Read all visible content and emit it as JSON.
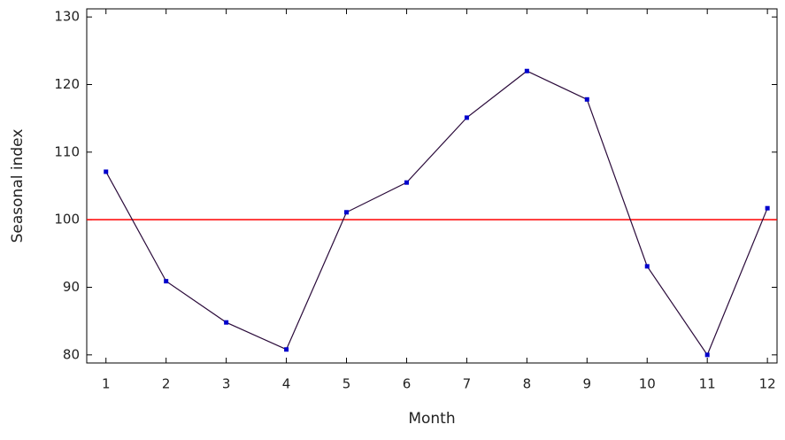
{
  "chart_data": {
    "type": "line",
    "x_label": "Month",
    "y_label": "Seasonal index",
    "x": [
      1,
      2,
      3,
      4,
      5,
      6,
      7,
      8,
      9,
      10,
      11,
      12
    ],
    "series": [
      {
        "color": "#2a0a3a",
        "marker_color": "#0000cc",
        "values": [
          107.1,
          90.9,
          84.8,
          80.8,
          101.1,
          105.5,
          115.1,
          122.0,
          117.8,
          93.1,
          80.0,
          101.7
        ]
      }
    ],
    "reference_line": {
      "value": 100,
      "color": "#ff0000"
    },
    "xlim": [
      0.68,
      12.16
    ],
    "xticks": [
      1,
      2,
      3,
      4,
      5,
      6,
      7,
      8,
      9,
      10,
      11,
      12
    ],
    "ylim": [
      78.8,
      131.2
    ],
    "yticks": [
      80,
      90,
      100,
      110,
      120,
      130
    ]
  }
}
